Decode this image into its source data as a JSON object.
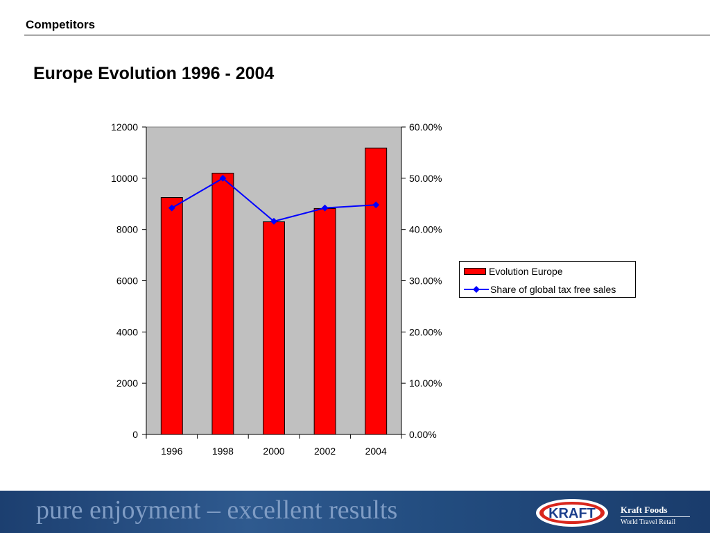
{
  "header": {
    "section_title": "Competitors",
    "slide_title": "Europe Evolution 1996 - 2004"
  },
  "chart_data": {
    "type": "bar",
    "title": "",
    "categories": [
      "1996",
      "1998",
      "2000",
      "2002",
      "2004"
    ],
    "series": [
      {
        "name": "Evolution Europe",
        "type": "bar",
        "axis": "left",
        "color": "#ff0000",
        "values": [
          9250,
          10200,
          8300,
          8820,
          11180
        ]
      },
      {
        "name": "Share of global tax free sales",
        "type": "line",
        "axis": "right",
        "color": "#0000ff",
        "values": [
          0.442,
          0.5,
          0.416,
          0.442,
          0.448
        ]
      }
    ],
    "y_left": {
      "min": 0,
      "max": 12000,
      "ticks": [
        "0",
        "2000",
        "4000",
        "6000",
        "8000",
        "10000",
        "12000"
      ]
    },
    "y_right": {
      "min": 0,
      "max": 0.6,
      "ticks": [
        "0.00%",
        "10.00%",
        "20.00%",
        "30.00%",
        "40.00%",
        "50.00%",
        "60.00%"
      ]
    },
    "plot_background": "#c0c0c0",
    "grid": false,
    "legend_position": "right"
  },
  "footer": {
    "tagline": "pure enjoyment – excellent results",
    "logo_text": "KRAFT",
    "brand_name": "Kraft Foods",
    "brand_subtitle": "World Travel Retail"
  }
}
